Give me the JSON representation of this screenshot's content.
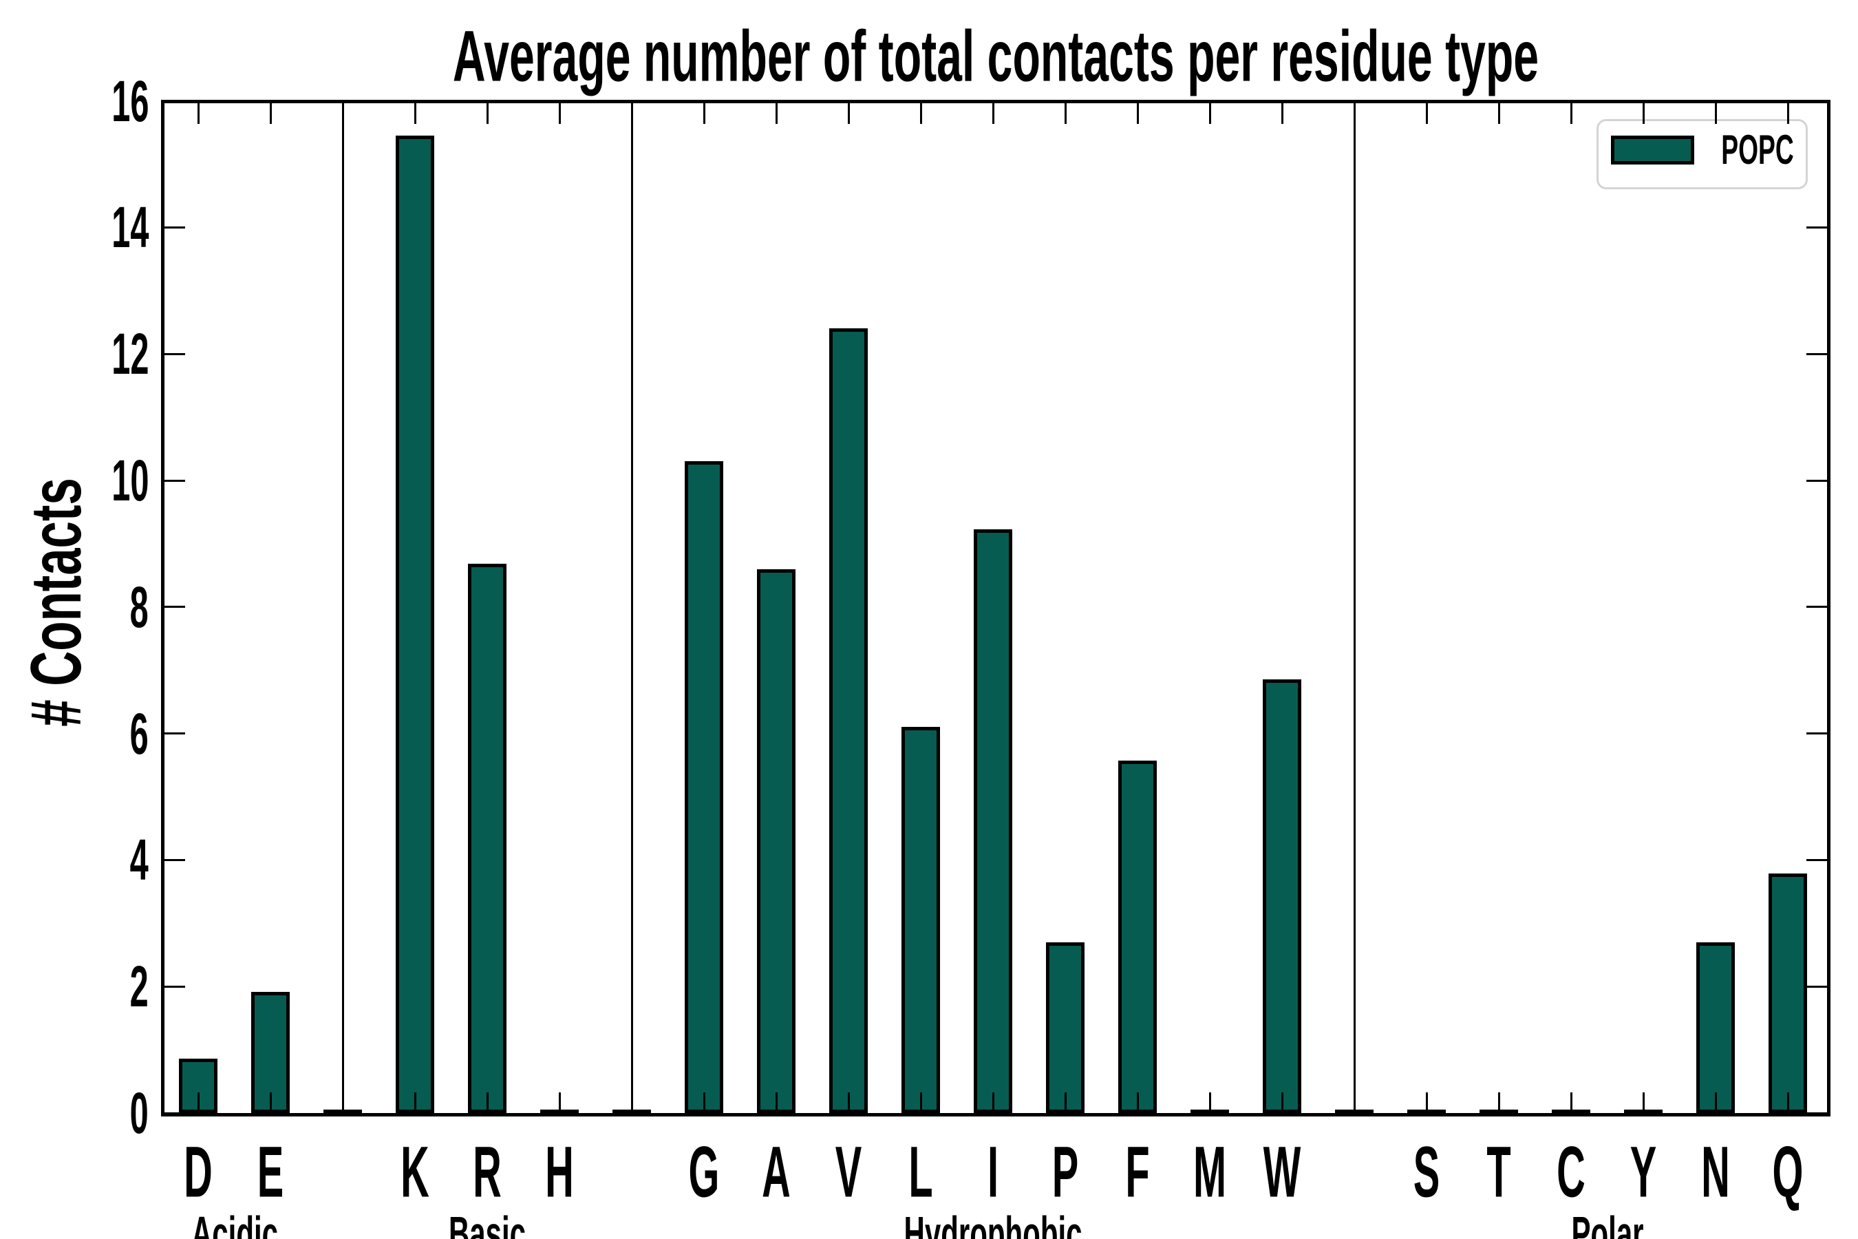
{
  "chart_data": {
    "type": "bar",
    "title": "Average number of total contacts per residue type",
    "ylabel": "# Contacts",
    "ylim": [
      0,
      16
    ],
    "y_ticks": [
      0,
      2,
      4,
      6,
      8,
      10,
      12,
      14,
      16
    ],
    "legend": [
      "POPC"
    ],
    "legend_position": "upper right",
    "grid": false,
    "groups": [
      {
        "name": "Acidic",
        "categories": [
          "D",
          "E"
        ],
        "values": [
          0.86,
          1.91
        ]
      },
      {
        "name": "Basic",
        "categories": [
          "K",
          "R",
          "H"
        ],
        "values": [
          15.45,
          8.68,
          0.0
        ]
      },
      {
        "name": "Hydrophobic",
        "categories": [
          "G",
          "A",
          "V",
          "L",
          "I",
          "P",
          "F",
          "M",
          "W"
        ],
        "values": [
          10.3,
          8.6,
          12.4,
          6.1,
          9.23,
          2.7,
          5.57,
          0.0,
          6.85
        ]
      },
      {
        "name": "Polar",
        "categories": [
          "S",
          "T",
          "C",
          "Y",
          "N",
          "Q"
        ],
        "values": [
          0.0,
          0.0,
          0.0,
          0.0,
          2.7,
          3.79
        ]
      }
    ],
    "series": [
      {
        "name": "POPC",
        "categories": [
          "D",
          "E",
          "K",
          "R",
          "H",
          "G",
          "A",
          "V",
          "L",
          "I",
          "P",
          "F",
          "M",
          "W",
          "S",
          "T",
          "C",
          "Y",
          "N",
          "Q"
        ],
        "values": [
          0.86,
          1.91,
          15.45,
          8.68,
          0.0,
          10.3,
          8.6,
          12.4,
          6.1,
          9.23,
          2.7,
          5.57,
          0.0,
          6.85,
          0.0,
          0.0,
          0.0,
          0.0,
          2.7,
          3.79
        ]
      }
    ]
  },
  "colors": {
    "bar_fill": "#075c51",
    "bar_edge": "#000000",
    "legend_border": "#d4d4d4",
    "text": "#000000"
  }
}
